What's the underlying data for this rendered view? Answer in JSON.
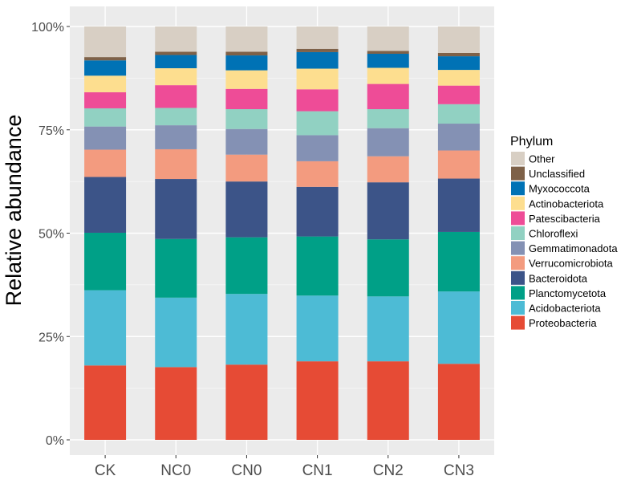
{
  "chart_data": {
    "type": "bar",
    "stacked": true,
    "title": "",
    "xlabel": "",
    "ylabel": "Relative abundance",
    "ylim": [
      0,
      100
    ],
    "yticks": [
      0,
      25,
      50,
      75,
      100
    ],
    "ytick_labels": [
      "0%",
      "25%",
      "50%",
      "75%",
      "100%"
    ],
    "categories": [
      "CK",
      "NC0",
      "CN0",
      "CN1",
      "CN2",
      "CN3"
    ],
    "legend_title": "Phylum",
    "legend_position": "right",
    "series": [
      {
        "name": "Proteobacteria",
        "color": "#E64B35",
        "values": [
          18.0,
          17.6,
          18.2,
          19.0,
          19.0,
          18.4
        ]
      },
      {
        "name": "Acidobacteriota",
        "color": "#4DBBD5",
        "values": [
          18.2,
          16.8,
          17.1,
          15.9,
          15.7,
          17.5
        ]
      },
      {
        "name": "Planctomycetota",
        "color": "#00A087",
        "values": [
          13.9,
          14.2,
          13.7,
          14.3,
          13.8,
          14.4
        ]
      },
      {
        "name": "Bacteroidota",
        "color": "#3C5488",
        "values": [
          13.5,
          14.5,
          13.5,
          12.0,
          13.8,
          12.9
        ]
      },
      {
        "name": "Verrucomicrobiota",
        "color": "#F39B7F",
        "values": [
          6.6,
          7.2,
          6.5,
          6.2,
          6.3,
          6.8
        ]
      },
      {
        "name": "Gemmatimonadota",
        "color": "#8491B4",
        "values": [
          5.6,
          5.8,
          6.2,
          6.3,
          6.8,
          6.5
        ]
      },
      {
        "name": "Chloroflexi",
        "color": "#91D1C2",
        "values": [
          4.4,
          4.2,
          4.8,
          5.8,
          4.6,
          4.7
        ]
      },
      {
        "name": "Patescibacteria",
        "color": "#EE4C97",
        "values": [
          3.9,
          5.5,
          4.9,
          5.3,
          6.1,
          4.5
        ]
      },
      {
        "name": "Actinobacteriota",
        "color": "#FDDE8F",
        "values": [
          4.0,
          4.1,
          4.5,
          5.0,
          3.9,
          3.8
        ]
      },
      {
        "name": "Myxococcota",
        "color": "#0072B5",
        "values": [
          3.7,
          3.2,
          3.6,
          4.0,
          3.4,
          3.3
        ]
      },
      {
        "name": "Unclassified",
        "color": "#7E6148",
        "values": [
          0.8,
          0.8,
          0.9,
          0.8,
          0.7,
          0.8
        ]
      },
      {
        "name": "Other",
        "color": "#D8CFC4",
        "values": [
          7.4,
          6.1,
          6.1,
          5.4,
          5.9,
          6.4
        ]
      }
    ]
  }
}
